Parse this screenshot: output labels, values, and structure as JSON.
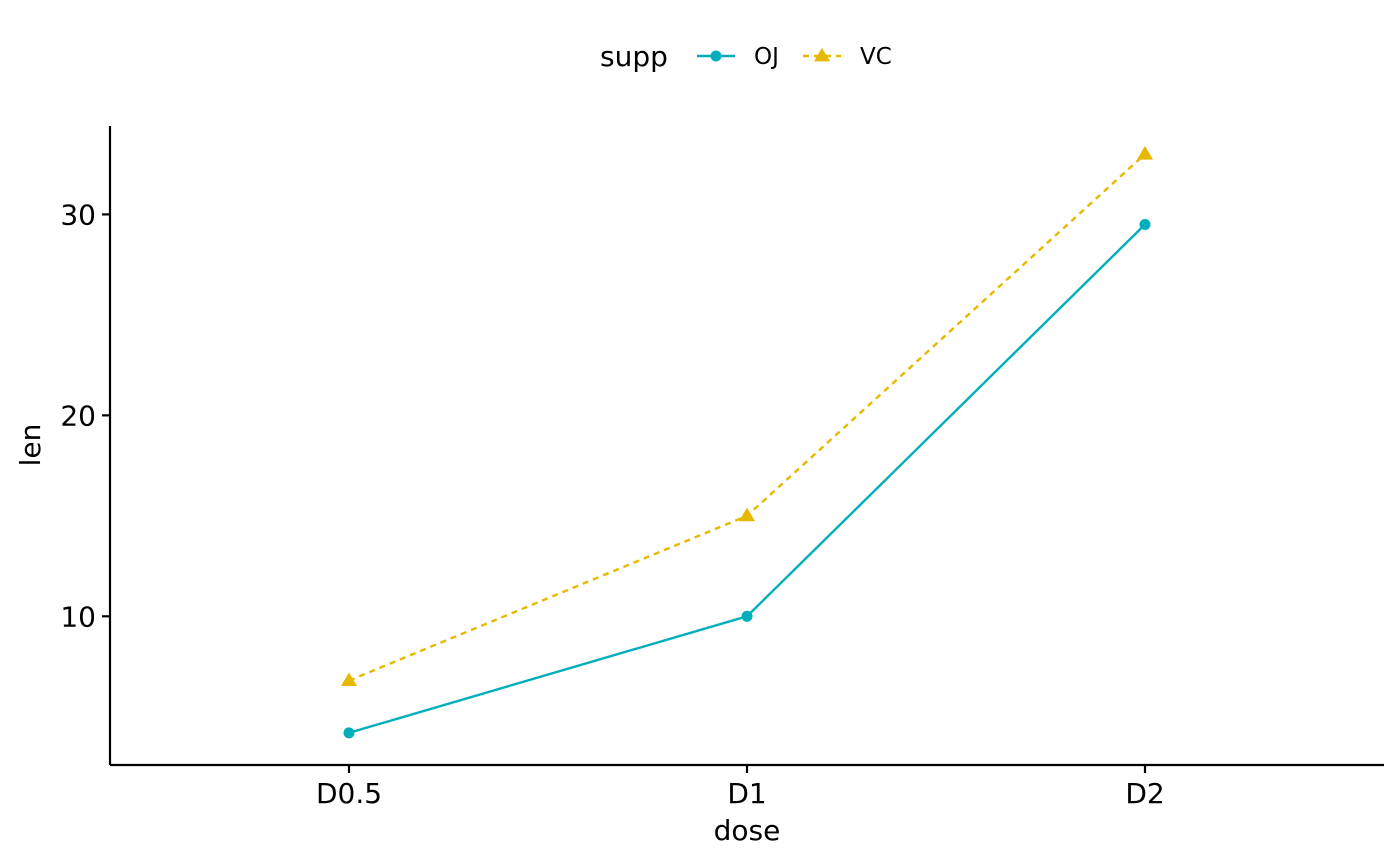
{
  "chart_data": {
    "type": "line",
    "title": "",
    "xlabel": "dose",
    "ylabel": "len",
    "categories": [
      "D0.5",
      "D1",
      "D2"
    ],
    "ylim": [
      2.6,
      34.4
    ],
    "yticks": [
      10,
      20,
      30
    ],
    "grid": false,
    "legend": {
      "title": "supp",
      "position": "top"
    },
    "series": [
      {
        "name": "OJ",
        "values": [
          4.2,
          10.0,
          29.5
        ],
        "color": "#00AFBB",
        "marker": "circle",
        "line": "solid"
      },
      {
        "name": "VC",
        "values": [
          6.8,
          15.0,
          33.0
        ],
        "color": "#E7B800",
        "marker": "triangle",
        "line": "dashed"
      }
    ]
  }
}
